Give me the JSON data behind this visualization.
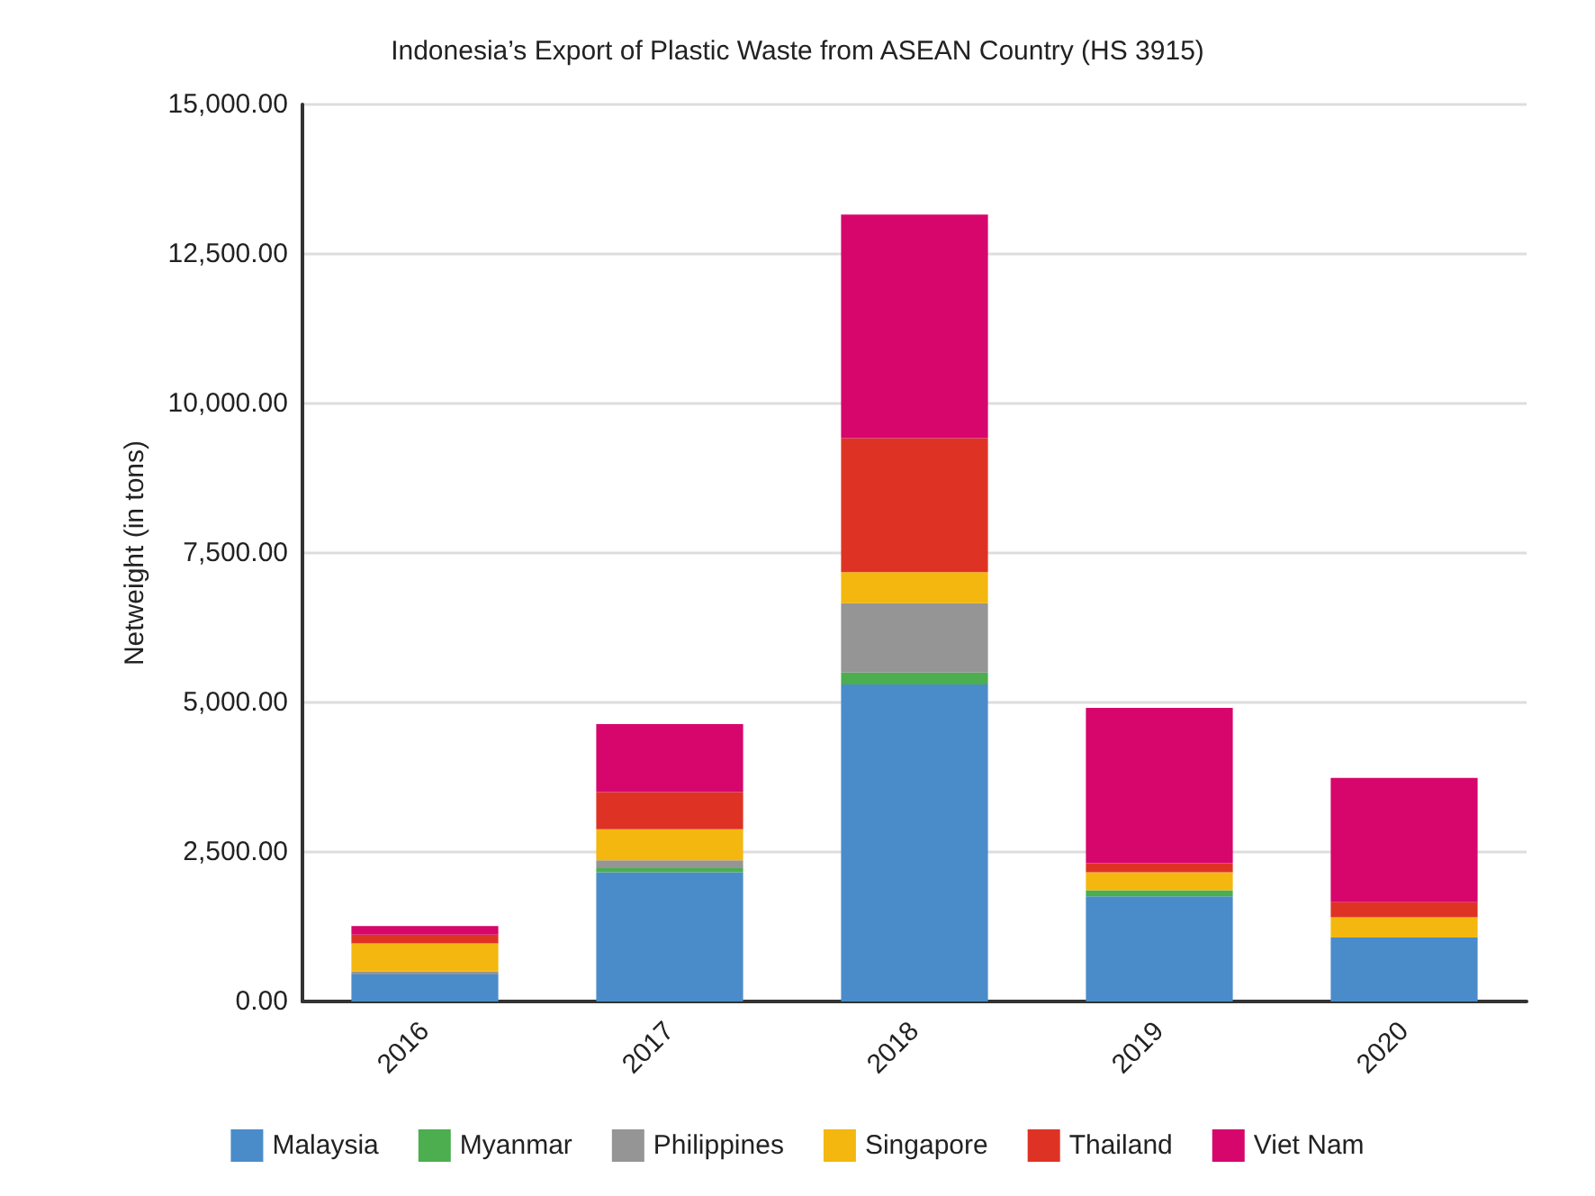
{
  "chart_data": {
    "type": "bar",
    "title": "Indonesia’s Export of Plastic Waste from ASEAN Country (HS 3915)",
    "ylabel": "Netweight (in tons)",
    "categories": [
      "2016",
      "2017",
      "2018",
      "2019",
      "2020"
    ],
    "stacked": true,
    "series": [
      {
        "name": "Malaysia",
        "color": "#4a8cc9",
        "values": [
          450,
          2160,
          5300,
          1760,
          1070
        ]
      },
      {
        "name": "Myanmar",
        "color": "#4cae4f",
        "values": [
          0,
          70,
          200,
          100,
          0
        ]
      },
      {
        "name": "Philippines",
        "color": "#959595",
        "values": [
          50,
          130,
          1160,
          0,
          0
        ]
      },
      {
        "name": "Singapore",
        "color": "#f4b70f",
        "values": [
          470,
          520,
          520,
          300,
          340
        ]
      },
      {
        "name": "Thailand",
        "color": "#de3324",
        "values": [
          150,
          620,
          2240,
          150,
          250
        ]
      },
      {
        "name": "Viet Nam",
        "color": "#d6066d",
        "values": [
          140,
          1140,
          3740,
          2600,
          2080
        ]
      }
    ],
    "ylim": [
      0,
      15000
    ],
    "yticks": [
      {
        "value": 0,
        "label": "0.00"
      },
      {
        "value": 2500,
        "label": "2,500.00"
      },
      {
        "value": 5000,
        "label": "5,000.00"
      },
      {
        "value": 7500,
        "label": "7,500.00"
      },
      {
        "value": 10000,
        "label": "10,000.00"
      },
      {
        "value": 12500,
        "label": "12,500.00"
      },
      {
        "value": 15000,
        "label": "15,000.00"
      }
    ],
    "grid": "y",
    "legend": "bottom"
  }
}
